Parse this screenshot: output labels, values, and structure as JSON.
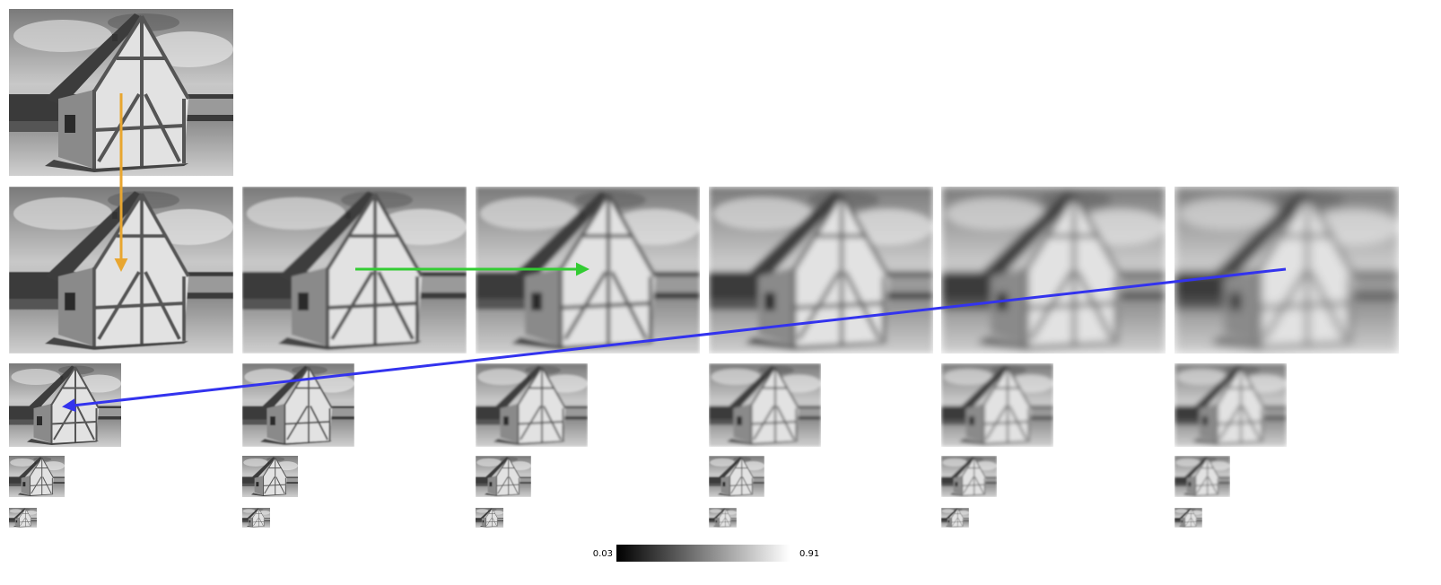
{
  "colorbar": {
    "min_label": "0.03",
    "max_label": "0.91",
    "colormap": "gray"
  },
  "layout": {
    "levels": [
      {
        "octave": 0,
        "blur_levels": 1
      },
      {
        "octave": 1,
        "blur_levels": 6
      },
      {
        "octave": 2,
        "blur_levels": 6
      },
      {
        "octave": 3,
        "blur_levels": 6
      },
      {
        "octave": 4,
        "blur_levels": 6
      }
    ]
  },
  "arrows": [
    {
      "name": "orange-arrow",
      "color": "#e8a630"
    },
    {
      "name": "green-arrow",
      "color": "#33cc33"
    },
    {
      "name": "blue-arrow",
      "color": "#3333ee"
    }
  ]
}
